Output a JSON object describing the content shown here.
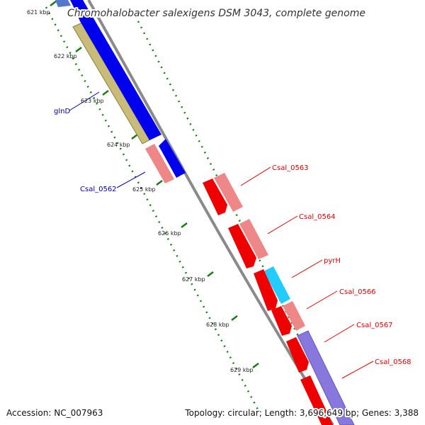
{
  "title": "Chromohalobacter salexigens DSM 3043, complete genome",
  "footer": {
    "accession": "Accession: NC_007963",
    "topology": "Topology: circular; Length: 3,696,649 bp; Genes: 3,388"
  },
  "ticks": [
    "621 kbp",
    "622 kbp",
    "623 kbp",
    "624 kbp",
    "625 kbp",
    "626 kbp",
    "627 kbp",
    "628 kbp",
    "629 kbp"
  ],
  "gene_labels": [
    {
      "text": "glnD",
      "color": "#0000aa"
    },
    {
      "text": "Csal_0562",
      "color": "#0000aa"
    },
    {
      "text": "Csal_0563",
      "color": "#dd0000"
    },
    {
      "text": "Csal_0564",
      "color": "#dd0000"
    },
    {
      "text": "pyrH",
      "color": "#dd0000"
    },
    {
      "text": "Csal_0566",
      "color": "#dd0000"
    },
    {
      "text": "Csal_0567",
      "color": "#dd0000"
    },
    {
      "text": "Csal_0568",
      "color": "#dd0000"
    }
  ],
  "colors": {
    "backbone": "#8a8a8a",
    "gc_dots": "#1a7a1a",
    "olive": "#c8bc78",
    "blue": "#0000ee",
    "salmon": "#ee8888",
    "red": "#ee0000",
    "cyan": "#22ccff",
    "purple": "#8877dd"
  }
}
